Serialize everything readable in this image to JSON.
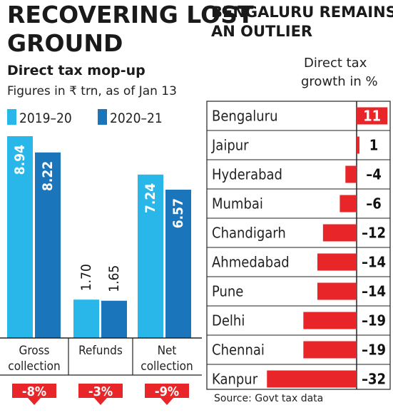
{
  "left": {
    "title_line1": "RECOVERING LOST",
    "title_line2": "GROUND",
    "subtitle": "Direct tax mop-up",
    "note": "Figures in ₹ trn, as of Jan 13",
    "chart_data": {
      "type": "bar",
      "categories": [
        "Gross collection",
        "Refunds",
        "Net collection"
      ],
      "category_lines": [
        [
          "Gross",
          "collection"
        ],
        [
          "Refunds"
        ],
        [
          "Net",
          "collection"
        ]
      ],
      "series": [
        {
          "name": "2019-20",
          "values": [
            8.94,
            1.7,
            7.24
          ],
          "labels": [
            "8.94",
            "1.70",
            "7.24"
          ]
        },
        {
          "name": "2020-21",
          "values": [
            8.22,
            1.65,
            6.57
          ],
          "labels": [
            "8.22",
            "1.65",
            "6.57"
          ]
        }
      ],
      "changes": [
        "-8%",
        "-3%",
        "-9%"
      ],
      "ylim": [
        0,
        8.94
      ],
      "colors": {
        "2019-20": "#29b6e8",
        "2020-21": "#1a75bb",
        "change": "#e8262a"
      }
    }
  },
  "right": {
    "title_line1": "BENGALURU REMAINS",
    "title_line2": "AN OUTLIER",
    "axis_label_line1": "Direct tax",
    "axis_label_line2": "growth in %",
    "source": "Source: Govt tax data",
    "chart_data": {
      "type": "bar",
      "orientation": "horizontal",
      "categories": [
        "Bengaluru",
        "Jaipur",
        "Hyderabad",
        "Mumbai",
        "Chandigarh",
        "Ahmedabad",
        "Pune",
        "Delhi",
        "Chennai",
        "Kanpur"
      ],
      "values": [
        11,
        1,
        -4,
        -6,
        -12,
        -14,
        -14,
        -19,
        -19,
        -32
      ],
      "labels": [
        "11",
        "1",
        "-4",
        "-6",
        "-12",
        "-14",
        "-14",
        "-19",
        "-19",
        "-32"
      ],
      "bar_color": "#e8262a"
    }
  }
}
